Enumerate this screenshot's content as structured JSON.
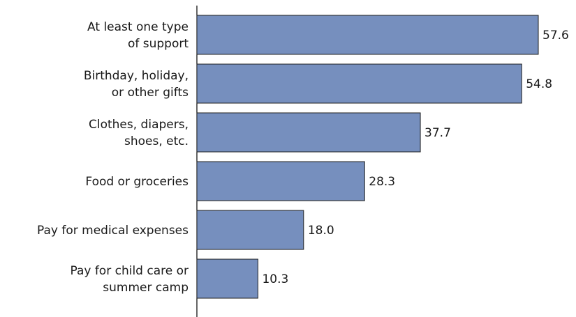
{
  "chart_data": {
    "type": "bar",
    "orientation": "horizontal",
    "categories": [
      [
        "At least one type",
        "of support"
      ],
      [
        "Birthday, holiday,",
        "or other gifts"
      ],
      [
        "Clothes, diapers,",
        "shoes, etc."
      ],
      [
        "Food or groceries"
      ],
      [
        "Pay for medical expenses"
      ],
      [
        "Pay for child care or",
        "summer camp"
      ]
    ],
    "values": [
      57.6,
      54.8,
      37.7,
      28.3,
      18.0,
      10.3
    ],
    "value_labels": [
      "57.6",
      "54.8",
      "37.7",
      "28.3",
      "18.0",
      "10.3"
    ],
    "title": "",
    "xlabel": "",
    "ylabel": "",
    "xlim": [
      0,
      58
    ],
    "grid": false,
    "legend": "none",
    "colors": {
      "bar_fill": "#768fbe",
      "bar_stroke": "#1f1f1f",
      "text": "#1a1a1a",
      "axis": "#000000"
    }
  }
}
